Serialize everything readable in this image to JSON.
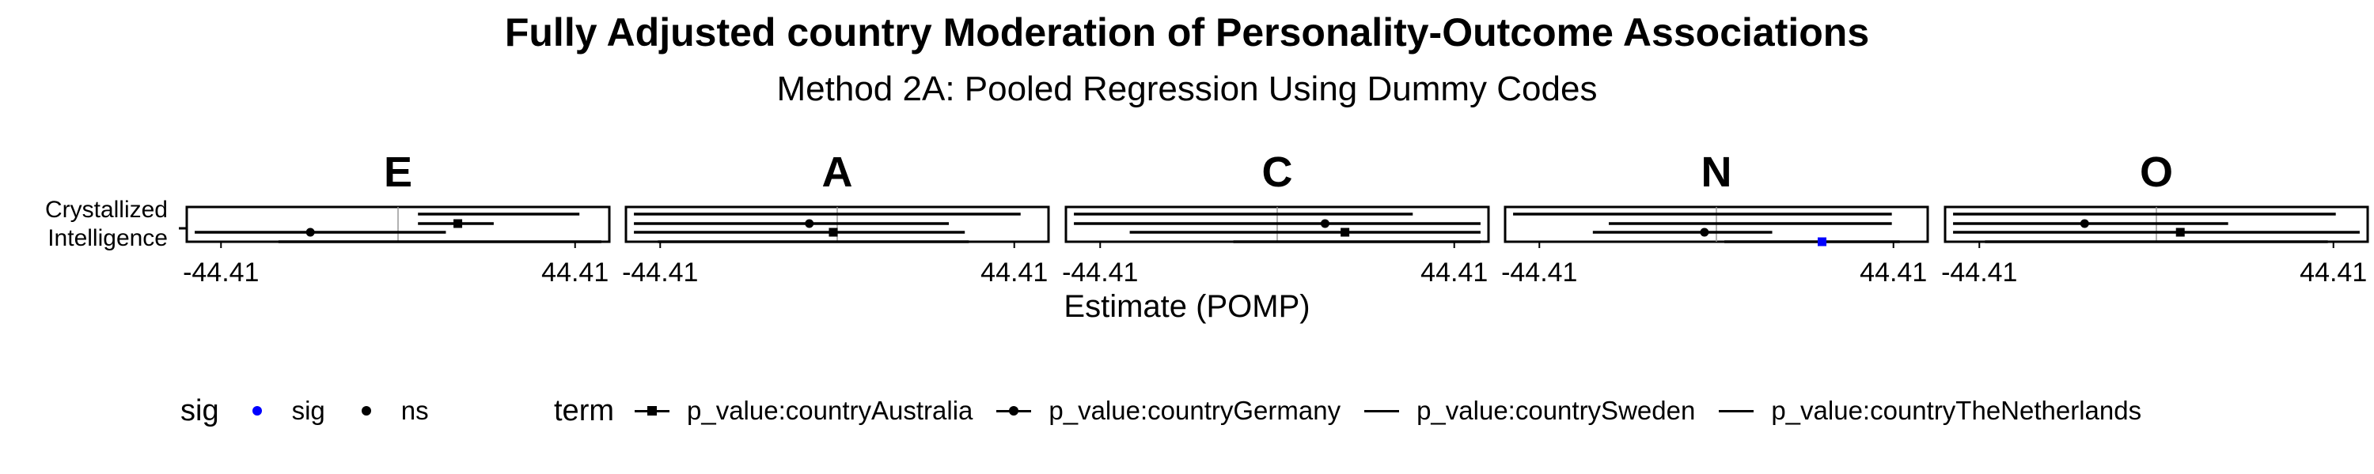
{
  "title": "Fully Adjusted country Moderation of Personality-Outcome Associations",
  "subtitle": "Method 2A: Pooled Regression Using Dummy Codes",
  "xlabel": "Estimate (POMP)",
  "ylabel_lines": [
    "Crystallized",
    "Intelligence"
  ],
  "colors": {
    "sig": "#0000ff",
    "ns": "#000000",
    "grid": "#999999",
    "frame": "#000000"
  },
  "legend": {
    "sig": {
      "title": "sig",
      "items": [
        {
          "label": "sig",
          "color": "#0000ff"
        },
        {
          "label": "ns",
          "color": "#000000"
        }
      ]
    },
    "term": {
      "title": "term",
      "items": [
        {
          "label": "p_value:countryAustralia",
          "shape": "square"
        },
        {
          "label": "p_value:countryGermany",
          "shape": "circle"
        },
        {
          "label": "p_value:countrySweden",
          "shape": "none"
        },
        {
          "label": "p_value:countryTheNetherlands",
          "shape": "none"
        }
      ]
    }
  },
  "chart_data": {
    "type": "scatter",
    "xlim": [
      -53,
      53
    ],
    "x_ticks": [
      -44.41,
      44.41
    ],
    "x_tick_labels": [
      "-44.41",
      "44.41"
    ],
    "y_categories": [
      "Crystallized Intelligence"
    ],
    "grid": false,
    "vline_at": 0,
    "legend_placement": "bottom",
    "panels": [
      {
        "label": "E",
        "rows": [
          {
            "term": "p_value:countrySweden",
            "estimate": null,
            "lo": 5,
            "hi": 45.5,
            "sig": "ns"
          },
          {
            "term": "p_value:countryAustralia",
            "estimate": 15,
            "lo": 5,
            "hi": 24,
            "sig": "ns"
          },
          {
            "term": "p_value:countryGermany",
            "estimate": -22,
            "lo": -51,
            "hi": 12,
            "sig": "ns"
          },
          {
            "term": "p_value:countryTheNetherlands",
            "estimate": null,
            "lo": -30,
            "hi": 51,
            "sig": "ns"
          }
        ]
      },
      {
        "label": "A",
        "rows": [
          {
            "term": "p_value:countrySweden",
            "estimate": null,
            "lo": -51,
            "hi": 46,
            "sig": "ns"
          },
          {
            "term": "p_value:countryGermany",
            "estimate": -7,
            "lo": -51,
            "hi": 28,
            "sig": "ns"
          },
          {
            "term": "p_value:countryAustralia",
            "estimate": -1,
            "lo": -51,
            "hi": 32,
            "sig": "ns"
          },
          {
            "term": "p_value:countryTheNetherlands",
            "estimate": null,
            "lo": -45,
            "hi": 33,
            "sig": "ns"
          }
        ]
      },
      {
        "label": "C",
        "rows": [
          {
            "term": "p_value:countrySweden",
            "estimate": null,
            "lo": -51,
            "hi": 34,
            "sig": "ns"
          },
          {
            "term": "p_value:countryGermany",
            "estimate": 12,
            "lo": -51,
            "hi": 51,
            "sig": "ns"
          },
          {
            "term": "p_value:countryAustralia",
            "estimate": 17,
            "lo": -37,
            "hi": 51,
            "sig": "ns"
          },
          {
            "term": "p_value:countryTheNetherlands",
            "estimate": null,
            "lo": -11,
            "hi": 51,
            "sig": "ns"
          }
        ]
      },
      {
        "label": "N",
        "rows": [
          {
            "term": "p_value:countrySweden",
            "estimate": null,
            "lo": -51,
            "hi": 44,
            "sig": "ns"
          },
          {
            "term": "p_value:countryTheNetherlands",
            "estimate": null,
            "lo": -27,
            "hi": 44,
            "sig": "ns"
          },
          {
            "term": "p_value:countryGermany",
            "estimate": -3,
            "lo": -31,
            "hi": 14,
            "sig": "ns"
          },
          {
            "term": "p_value:countryAustralia",
            "estimate": 26.5,
            "lo": 2,
            "hi": 46,
            "sig": "sig"
          }
        ]
      },
      {
        "label": "O",
        "rows": [
          {
            "term": "p_value:countrySweden",
            "estimate": null,
            "lo": -51,
            "hi": 45,
            "sig": "ns"
          },
          {
            "term": "p_value:countryGermany",
            "estimate": -18,
            "lo": -51,
            "hi": 18,
            "sig": "ns"
          },
          {
            "term": "p_value:countryAustralia",
            "estimate": 6,
            "lo": -51,
            "hi": 51,
            "sig": "ns"
          },
          {
            "term": "p_value:countryTheNetherlands",
            "estimate": null,
            "lo": -43,
            "hi": 43,
            "sig": "ns"
          }
        ]
      }
    ]
  }
}
